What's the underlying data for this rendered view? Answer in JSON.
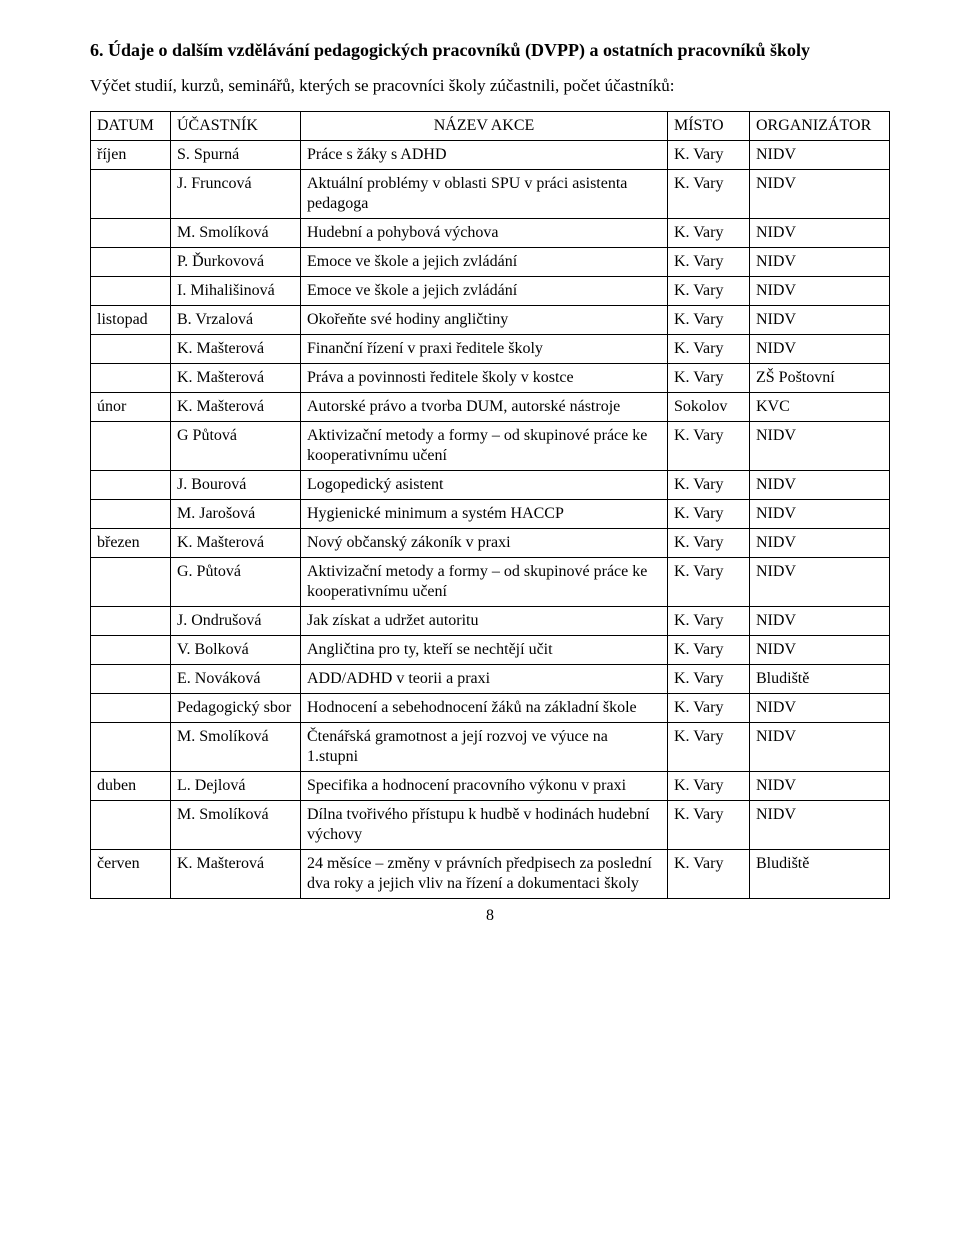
{
  "heading": "6. Údaje o dalším vzdělávání pedagogických pracovníků (DVPP) a ostatních pracovníků školy",
  "intro": "Výčet studií, kurzů, seminářů, kterých se pracovníci školy zúčastnili, počet účastníků:",
  "headers": {
    "datum": "DATUM",
    "ucastnik": "ÚČASTNÍK",
    "akce": "NÁZEV AKCE",
    "misto": "MÍSTO",
    "org": "ORGANIZÁTOR"
  },
  "rows": [
    {
      "datum": "říjen",
      "ucastnik": "S. Spurná",
      "akce": "Práce s žáky s ADHD",
      "misto": "K. Vary",
      "org": "NIDV"
    },
    {
      "datum": "",
      "ucastnik": "J. Fruncová",
      "akce": "Aktuální problémy v oblasti SPU v práci asistenta pedagoga",
      "misto": "K. Vary",
      "org": "NIDV"
    },
    {
      "datum": "",
      "ucastnik": "M. Smolíková",
      "akce": "Hudební a pohybová výchova",
      "misto": "K. Vary",
      "org": "NIDV"
    },
    {
      "datum": "",
      "ucastnik": "P. Ďurkovová",
      "akce": "Emoce ve škole a jejich zvládání",
      "misto": "K. Vary",
      "org": "NIDV"
    },
    {
      "datum": "",
      "ucastnik": "I. Mihališinová",
      "akce": "Emoce ve škole a jejich zvládání",
      "misto": "K. Vary",
      "org": "NIDV"
    },
    {
      "datum": "listopad",
      "ucastnik": "B. Vrzalová",
      "akce": "Okořeňte své hodiny angličtiny",
      "misto": "K. Vary",
      "org": "NIDV"
    },
    {
      "datum": "",
      "ucastnik": "K. Mašterová",
      "akce": "Finanční řízení v praxi ředitele školy",
      "misto": "K. Vary",
      "org": "NIDV"
    },
    {
      "datum": "",
      "ucastnik": "K. Mašterová",
      "akce": "Práva a povinnosti ředitele školy v kostce",
      "misto": "K. Vary",
      "org": "ZŠ Poštovní"
    },
    {
      "datum": "únor",
      "ucastnik": "K. Mašterová",
      "akce": "Autorské právo a tvorba DUM, autorské nástroje",
      "misto": "Sokolov",
      "org": " KVC"
    },
    {
      "datum": "",
      "ucastnik": "G Půtová",
      "akce": "Aktivizační metody a formy – od skupinové práce ke kooperativnímu učení",
      "misto": "K. Vary",
      "org": "NIDV"
    },
    {
      "datum": "",
      "ucastnik": "J. Bourová",
      "akce": "Logopedický asistent",
      "misto": "K. Vary",
      "org": "NIDV"
    },
    {
      "datum": "",
      "ucastnik": "M. Jarošová",
      "akce": "Hygienické minimum a systém HACCP",
      "misto": "K. Vary",
      "org": "NIDV"
    },
    {
      "datum": "březen",
      "ucastnik": "K. Mašterová",
      "akce": "Nový občanský zákoník v praxi",
      "misto": "K. Vary",
      "org": "NIDV"
    },
    {
      "datum": "",
      "ucastnik": "G. Půtová",
      "akce": "Aktivizační metody a formy – od skupinové práce ke kooperativnímu učení",
      "misto": "K. Vary",
      "org": "NIDV"
    },
    {
      "datum": "",
      "ucastnik": "J. Ondrušová",
      "akce": "Jak získat a udržet autoritu",
      "misto": "K. Vary",
      "org": "NIDV"
    },
    {
      "datum": "",
      "ucastnik": "V. Bolková",
      "akce": "Angličtina pro ty, kteří se nechtějí učit",
      "misto": "K. Vary",
      "org": "NIDV"
    },
    {
      "datum": "",
      "ucastnik": "E. Nováková",
      "akce": "ADD/ADHD v teorii a praxi",
      "misto": "K. Vary",
      "org": "Bludiště"
    },
    {
      "datum": "",
      "ucastnik": "Pedagogický sbor",
      "akce": "Hodnocení a sebehodnocení žáků na základní škole",
      "misto": "K. Vary",
      "org": "NIDV"
    },
    {
      "datum": "",
      "ucastnik": "M. Smolíková",
      "akce": "Čtenářská gramotnost a její rozvoj ve výuce na 1.stupni",
      "misto": "K. Vary",
      "org": "NIDV"
    },
    {
      "datum": "duben",
      "ucastnik": "L. Dejlová",
      "akce": "Specifika a hodnocení pracovního výkonu v praxi",
      "misto": "K. Vary",
      "org": "NIDV"
    },
    {
      "datum": "",
      "ucastnik": "M. Smolíková",
      "akce": "Dílna tvořivého přístupu k hudbě v hodinách hudební výchovy",
      "misto": "K. Vary",
      "org": "NIDV"
    },
    {
      "datum": "červen",
      "ucastnik": "K. Mašterová",
      "akce": "24 měsíce – změny v právních předpisech za poslední dva roky a jejich vliv na řízení a dokumentaci školy",
      "misto": "K. Vary",
      "org": "Bludiště"
    }
  ],
  "page_number": "8",
  "style": {
    "border_color": "#000000",
    "background_color": "#ffffff",
    "font_family": "Times New Roman",
    "heading_fontsize_pt": 13,
    "body_fontsize_pt": 12
  }
}
